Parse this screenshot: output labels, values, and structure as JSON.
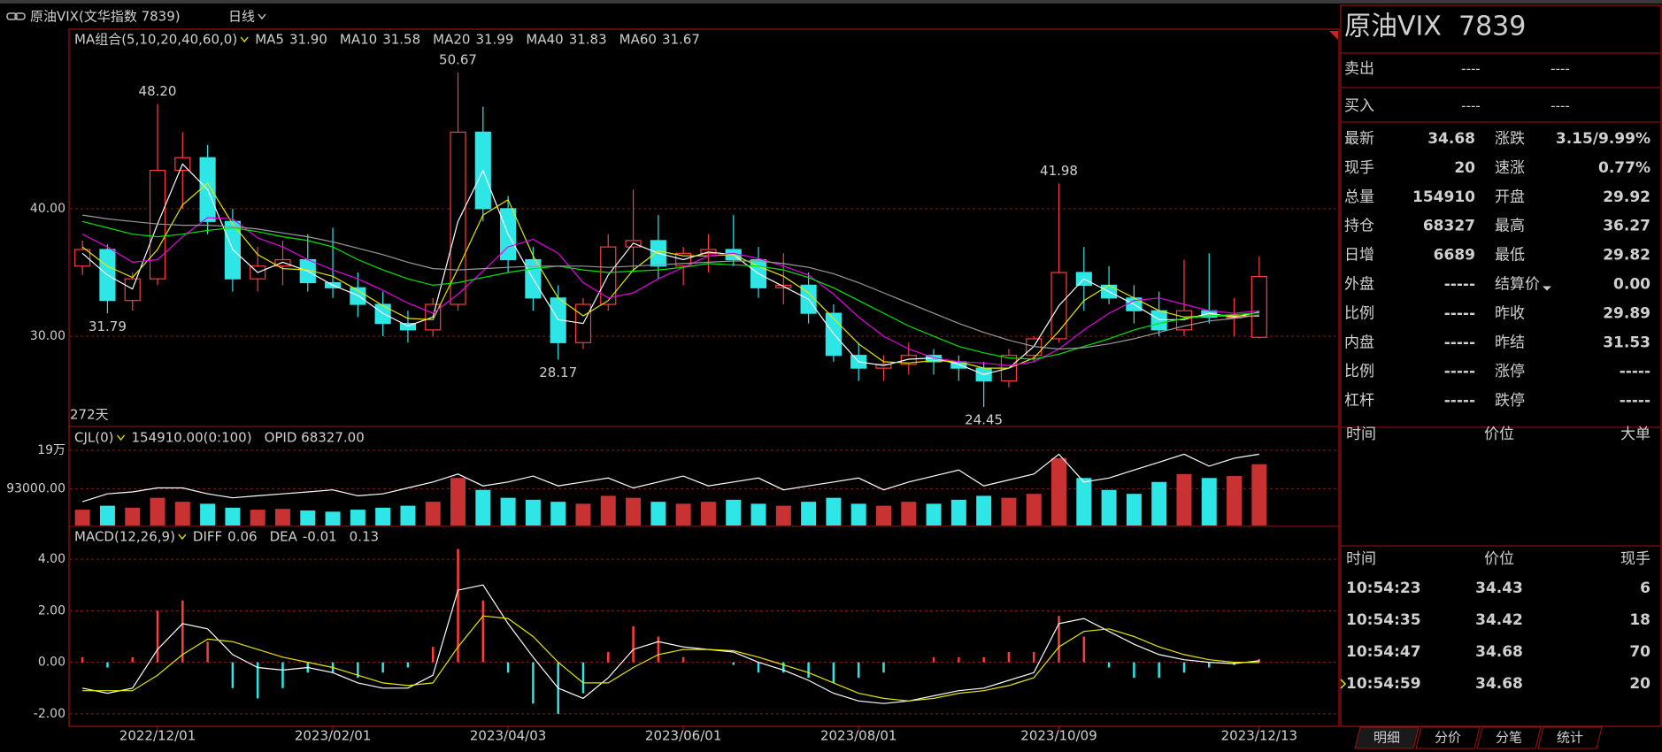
{
  "toolbar": {
    "symbol": "原油VIX(文华指数 7839)",
    "period": "日线"
  },
  "chart_data": [
    {
      "type": "candlestick",
      "legend_title": "MA组合(5,10,20,40,60,0)",
      "days_label": "272天",
      "ylim": [
        23,
        54
      ],
      "yticks": [
        {
          "value": 30,
          "label": "30.00"
        },
        {
          "value": 40,
          "label": "40.00"
        }
      ],
      "grid": true,
      "open": [
        35.5,
        36.8,
        32.8,
        34.5,
        43,
        44,
        39,
        34.5,
        35.5,
        36,
        34.2,
        33.8,
        32.5,
        31,
        30.5,
        32.5,
        46,
        40,
        36,
        33,
        29.5,
        32.5,
        37,
        37.5,
        35.5,
        36.5,
        36.8,
        36,
        33.8,
        34,
        31.8,
        28.5,
        27.5,
        27.8,
        28.5,
        28,
        27.5,
        26.5,
        28.5,
        29.8,
        35,
        34,
        33,
        32,
        30.5,
        32,
        31.5,
        29.92
      ],
      "high": [
        37.5,
        37.2,
        35,
        48.2,
        46,
        45,
        40,
        37,
        37.5,
        38,
        38.5,
        35,
        33.5,
        32,
        33,
        50.67,
        48,
        41,
        37,
        34,
        33,
        38,
        41.5,
        39.5,
        37,
        38,
        39.5,
        37,
        36.5,
        35,
        32.5,
        29.5,
        28.5,
        29.5,
        29,
        28.5,
        28,
        29,
        30,
        41.98,
        37,
        35.5,
        34,
        33.5,
        36,
        36.5,
        33,
        36.27
      ],
      "low": [
        34.8,
        31.79,
        32,
        34,
        40,
        38,
        33.5,
        33.5,
        34,
        33.5,
        33,
        31.5,
        30,
        29.5,
        30,
        32,
        39,
        35,
        32,
        28.17,
        29,
        32,
        35,
        34.5,
        34,
        35,
        35.5,
        33,
        32.5,
        31,
        28,
        26.5,
        26.5,
        27,
        27,
        26.5,
        24.45,
        26,
        28,
        29.5,
        32,
        32.5,
        31,
        30,
        30,
        31,
        30,
        29.82
      ],
      "close": [
        36.8,
        32.8,
        34.5,
        43,
        44,
        39,
        34.5,
        35.5,
        36,
        34.2,
        33.8,
        32.5,
        31,
        30.5,
        32.5,
        46,
        40,
        36,
        33,
        29.5,
        32.5,
        37,
        37.5,
        35.5,
        36.5,
        36.8,
        36,
        33.8,
        34,
        31.8,
        28.5,
        27.5,
        27.8,
        28.5,
        28,
        27.5,
        26.5,
        28.5,
        29.8,
        35,
        34,
        33,
        32,
        30.5,
        32,
        31.5,
        31.5,
        34.68
      ],
      "series": [
        {
          "name": "MA5",
          "legend_value": "31.90",
          "color": "#ffffff",
          "values": [
            36.5,
            34.8,
            33.7,
            38.8,
            43.5,
            41.5,
            36.8,
            35,
            35.8,
            35.1,
            34,
            33.2,
            31.8,
            30.8,
            31.5,
            39,
            43,
            38,
            34.5,
            31.3,
            31,
            34.8,
            37.3,
            36.5,
            36,
            36.6,
            36.4,
            34.9,
            33.9,
            32.9,
            30.2,
            28,
            27.7,
            28.2,
            28.3,
            27.8,
            27,
            27.5,
            29.2,
            32.4,
            34.5,
            33.5,
            32.5,
            31.3,
            31.3,
            31.8,
            31.5,
            31.9
          ]
        },
        {
          "name": "MA10",
          "legend_value": "31.58",
          "color": "#e6e600",
          "values": [
            37,
            35.5,
            34.6,
            36.8,
            40.3,
            42,
            38.8,
            36.4,
            35.3,
            35.2,
            34.7,
            33.6,
            32.4,
            31.4,
            31.3,
            35.3,
            39.5,
            40.7,
            36.3,
            33,
            31.6,
            32.8,
            35.2,
            36.7,
            36.3,
            36.3,
            36.4,
            35.5,
            34.7,
            33.4,
            31.4,
            29.4,
            28,
            27.9,
            28.1,
            28,
            27.5,
            27.5,
            28.3,
            30.4,
            32.8,
            34,
            33,
            32,
            31.5,
            31.6,
            31.6,
            31.58
          ]
        },
        {
          "name": "MA20",
          "legend_value": "31.99",
          "color": "#e600e6",
          "values": [
            38,
            37,
            35.8,
            36,
            37.8,
            39.3,
            39.2,
            37.7,
            37,
            36,
            35.2,
            34.5,
            33.6,
            32.6,
            31.8,
            33.3,
            35.1,
            37,
            37.6,
            36.5,
            34.2,
            33,
            33.4,
            34.5,
            35.4,
            36.3,
            36.5,
            36.1,
            35.5,
            34.8,
            33.3,
            31.5,
            30,
            29,
            28.3,
            28,
            27.9,
            27.7,
            28,
            29,
            30.5,
            31.8,
            32.8,
            33,
            32.5,
            32,
            31.8,
            31.99
          ]
        },
        {
          "name": "MA40",
          "legend_value": "31.83",
          "color": "#00e600",
          "values": [
            39,
            38.5,
            38,
            37.8,
            38,
            38.3,
            38.5,
            38.2,
            37.8,
            37.5,
            37,
            36,
            35.2,
            34.5,
            34,
            34.2,
            34.6,
            35,
            35.3,
            35.5,
            35.2,
            35,
            35.1,
            35.2,
            35.4,
            35.7,
            35.6,
            35.5,
            35.2,
            34.6,
            33.8,
            32.8,
            31.8,
            30.8,
            30,
            29.2,
            28.7,
            28.3,
            28.2,
            28.6,
            29.2,
            29.8,
            30.5,
            31,
            31.4,
            31.6,
            31.7,
            31.83
          ]
        },
        {
          "name": "MA60",
          "legend_value": "31.67",
          "color": "#9a9a9a",
          "values": [
            39.5,
            39.2,
            39,
            38.8,
            38.7,
            38.7,
            38.6,
            38.4,
            38.1,
            37.8,
            37.4,
            36.9,
            36.4,
            35.8,
            35.3,
            35.2,
            35.3,
            35.4,
            35.5,
            35.5,
            35.5,
            35.4,
            35.5,
            35.6,
            35.7,
            35.8,
            35.9,
            35.9,
            35.7,
            35.4,
            34.9,
            34.2,
            33.4,
            32.6,
            31.8,
            31,
            30.3,
            29.7,
            29.2,
            29,
            29.1,
            29.4,
            29.8,
            30.3,
            30.8,
            31.2,
            31.4,
            31.67
          ]
        }
      ],
      "annotations": [
        {
          "label": "48.20",
          "value": 48.2
        },
        {
          "label": "50.67",
          "value": 50.67
        },
        {
          "label": "41.98",
          "value": 41.98
        },
        {
          "label": "31.79",
          "value": 31.79
        },
        {
          "label": "28.17",
          "value": 28.17
        },
        {
          "label": "24.45",
          "value": 24.45
        }
      ]
    },
    {
      "type": "volume",
      "legend": [
        "CJL(0)",
        "154910.00(0:100)",
        "OPID 68327.00"
      ],
      "ylim": [
        0,
        248000
      ],
      "yticks": [
        {
          "value": 93000,
          "label": "93000.00"
        },
        {
          "value": 190000,
          "label": "19万"
        }
      ],
      "grid": true,
      "values": [
        40000,
        50000,
        45000,
        70000,
        60000,
        55000,
        45000,
        40000,
        42000,
        38000,
        35000,
        40000,
        45000,
        50000,
        60000,
        120000,
        90000,
        70000,
        65000,
        60000,
        55000,
        75000,
        70000,
        60000,
        55000,
        60000,
        65000,
        55000,
        50000,
        60000,
        70000,
        55000,
        50000,
        60000,
        55000,
        65000,
        75000,
        70000,
        80000,
        170000,
        120000,
        90000,
        80000,
        110000,
        130000,
        120000,
        125000,
        154910
      ],
      "line": {
        "color": "#ffffff",
        "values": [
          60000,
          80000,
          85000,
          95000,
          95000,
          80000,
          70000,
          75000,
          80000,
          85000,
          90000,
          75000,
          80000,
          95000,
          110000,
          130000,
          100000,
          110000,
          125000,
          100000,
          110000,
          120000,
          95000,
          110000,
          125000,
          100000,
          110000,
          120000,
          90000,
          100000,
          110000,
          120000,
          90000,
          110000,
          125000,
          140000,
          100000,
          115000,
          130000,
          180000,
          110000,
          120000,
          140000,
          160000,
          180000,
          150000,
          170000,
          180000
        ]
      }
    },
    {
      "type": "macd",
      "legend_title": "MACD(12,26,9)",
      "histogram_label": "0.13",
      "ylim": [
        -2.45,
        5.24
      ],
      "yticks": [
        {
          "value": -2,
          "label": "-2.00"
        },
        {
          "value": 0,
          "label": "0.00"
        },
        {
          "value": 2,
          "label": "2.00"
        },
        {
          "value": 4,
          "label": "4.00"
        }
      ],
      "grid": true,
      "categories": [
        null,
        null,
        null,
        "2022/12/01",
        null,
        null,
        null,
        null,
        null,
        null,
        "2023/02/01",
        null,
        null,
        null,
        null,
        null,
        null,
        "2023/04/03",
        null,
        null,
        null,
        null,
        null,
        null,
        "2023/06/01",
        null,
        null,
        null,
        null,
        null,
        null,
        "2023/08/01",
        null,
        null,
        null,
        null,
        null,
        null,
        null,
        "2023/10/09",
        null,
        null,
        null,
        null,
        null,
        null,
        null,
        "2023/12/13"
      ],
      "histogram": [
        0.2,
        -0.2,
        0.2,
        2,
        2.4,
        0.8,
        -1,
        -1.4,
        -1,
        -0.4,
        -0.4,
        -0.6,
        -0.4,
        -0.2,
        0.6,
        4.4,
        2.4,
        -0.4,
        -1.6,
        -2,
        -1.2,
        0.4,
        1.4,
        1,
        0.2,
        0,
        -0.1,
        -0.4,
        -0.4,
        -0.6,
        -0.8,
        -0.6,
        -0.4,
        0,
        0.2,
        0.2,
        0.2,
        0.4,
        0.4,
        1.8,
        1,
        -0.2,
        -0.6,
        -0.6,
        -0.4,
        -0.2,
        -0.1,
        0.13
      ],
      "series": [
        {
          "name": "DIFF",
          "legend_value": "0.06",
          "color": "#ffffff",
          "values": [
            -1,
            -1.2,
            -1,
            0.5,
            1.5,
            1.3,
            0.3,
            -0.2,
            -0.3,
            -0.2,
            -0.4,
            -0.8,
            -1,
            -1,
            -0.5,
            2.8,
            3,
            1.5,
            0.2,
            -1,
            -1.4,
            -0.6,
            0.5,
            0.8,
            0.6,
            0.5,
            0.4,
            0,
            -0.3,
            -0.7,
            -1.2,
            -1.5,
            -1.6,
            -1.5,
            -1.3,
            -1.1,
            -1,
            -0.7,
            -0.4,
            1.5,
            1.7,
            1.2,
            0.7,
            0.3,
            0.1,
            0,
            -0.05,
            0.06
          ]
        },
        {
          "name": "DEA",
          "legend_value": "-0.01",
          "color": "#e6e600",
          "values": [
            -1.1,
            -1.1,
            -1.1,
            -0.5,
            0.3,
            0.9,
            0.8,
            0.5,
            0.2,
            0,
            -0.2,
            -0.5,
            -0.8,
            -0.9,
            -0.8,
            0.6,
            1.8,
            1.7,
            1,
            0,
            -0.8,
            -0.8,
            -0.2,
            0.3,
            0.5,
            0.5,
            0.45,
            0.2,
            -0.1,
            -0.4,
            -0.8,
            -1.2,
            -1.4,
            -1.5,
            -1.4,
            -1.2,
            -1.1,
            -0.9,
            -0.6,
            0.6,
            1.2,
            1.3,
            1,
            0.6,
            0.3,
            0.1,
            0,
            -0.01
          ]
        }
      ]
    }
  ],
  "quote_panel": {
    "title": "原油VIX  7839",
    "bid_ask": [
      [
        "卖出",
        "----",
        "----"
      ],
      [
        "买入",
        "----",
        "----"
      ]
    ],
    "rows": [
      [
        "最新",
        "34.68",
        "涨跌",
        "3.15/9.99%"
      ],
      [
        "现手",
        "20",
        "速涨",
        "0.77%"
      ],
      [
        "总量",
        "154910",
        "开盘",
        "29.92"
      ],
      [
        "持仓",
        "68327",
        "最高",
        "36.27"
      ],
      [
        "日增",
        "6689",
        "最低",
        "29.82"
      ],
      [
        "外盘",
        "-----",
        "结算价",
        "0.00"
      ],
      [
        "比例",
        "-----",
        "昨收",
        "29.89"
      ],
      [
        "内盘",
        "-----",
        "昨结",
        "31.53"
      ],
      [
        "比例",
        "-----",
        "涨停",
        "-----"
      ],
      [
        "杠杆",
        "-----",
        "跌停",
        "-----"
      ]
    ],
    "big_orders_header": [
      "时间",
      "价位",
      "大单"
    ],
    "ticks_header": [
      "时间",
      "价位",
      "现手"
    ],
    "ticks": [
      [
        "10:54:23",
        "34.43",
        "6"
      ],
      [
        "10:54:35",
        "34.42",
        "18"
      ],
      [
        "10:54:47",
        "34.68",
        "70"
      ],
      [
        "10:54:59",
        "34.68",
        "20"
      ]
    ],
    "tabs": [
      "明细",
      "分价",
      "分笔",
      "统计"
    ]
  }
}
